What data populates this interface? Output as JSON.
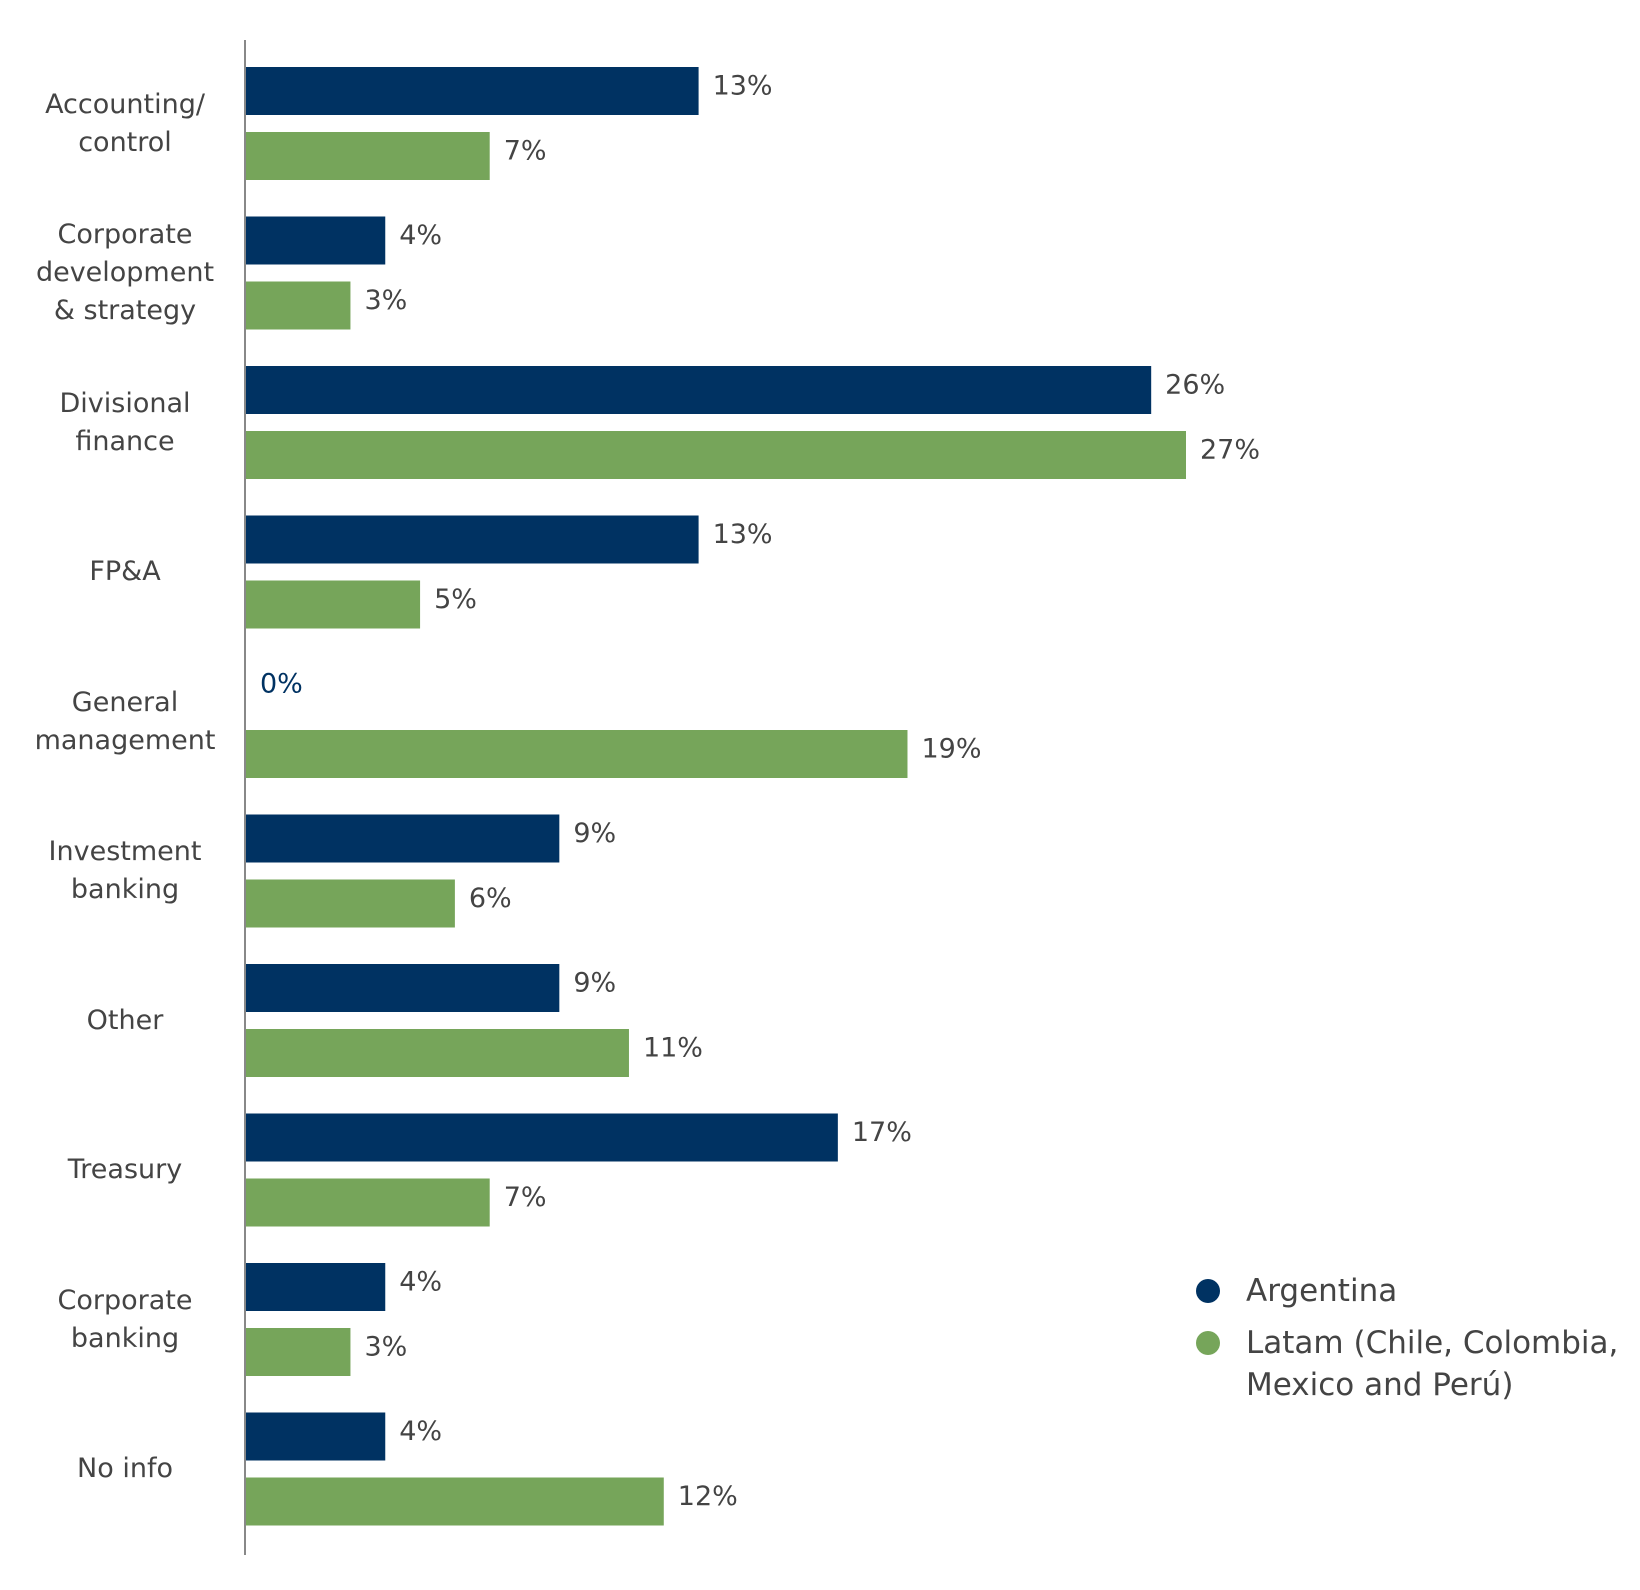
{
  "chart_data": {
    "type": "bar",
    "orientation": "horizontal",
    "categories": [
      "Accounting/\ncontrol",
      "Corporate\ndevelopment\n& strategy",
      "Divisional\nfinance",
      "FP&A",
      "General\nmanagement",
      "Investment\nbanking",
      "Other",
      "Treasury",
      "Corporate\nbanking",
      "No info"
    ],
    "series": [
      {
        "name": "Argentina",
        "color": "#003262",
        "values": [
          13,
          4,
          26,
          13,
          0,
          9,
          9,
          17,
          4,
          4
        ],
        "value_labels": [
          "13%",
          "4%",
          "26%",
          "13%",
          "0%",
          "9%",
          "9%",
          "17%",
          "4%",
          "4%"
        ]
      },
      {
        "name": "Latam (Chile, Colombia,\nMexico and Perú)",
        "color": "#76a55a",
        "values": [
          7,
          3,
          27,
          5,
          19,
          6,
          11,
          7,
          3,
          12
        ],
        "value_labels": [
          "7%",
          "3%",
          "27%",
          "5%",
          "19%",
          "6%",
          "11%",
          "7%",
          "3%",
          "12%"
        ]
      }
    ],
    "legend": "lower right"
  }
}
